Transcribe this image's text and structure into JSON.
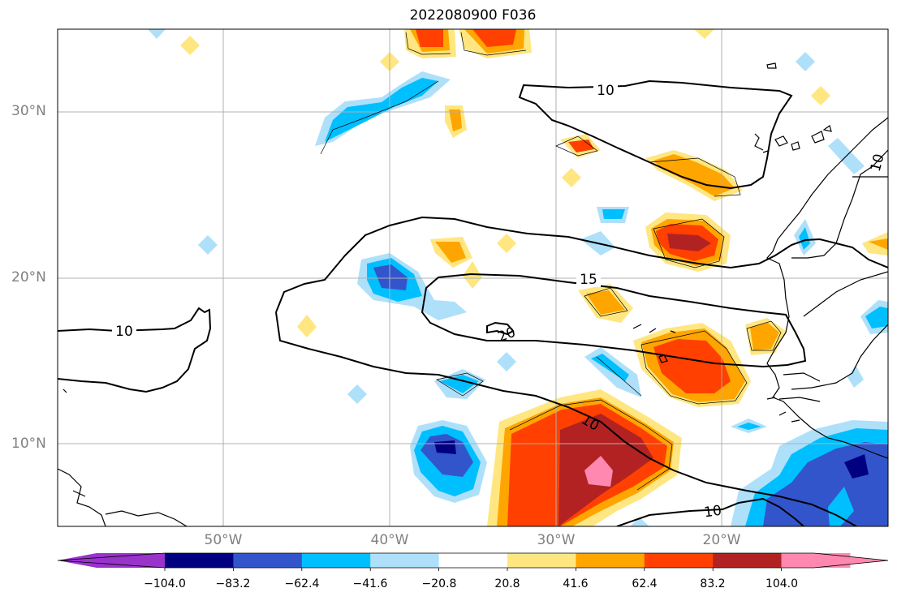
{
  "title": "2022080900 F036",
  "lat_labels": [
    "30°N",
    "20°N",
    "10°N"
  ],
  "lon_labels": [
    "50°W",
    "40°W",
    "30°W",
    "20°W"
  ],
  "contour_labels": [
    "10",
    "15",
    "20",
    "10",
    "10",
    "10"
  ],
  "colorbar": {
    "ticks": [
      "−104.0",
      "−83.2",
      "−62.4",
      "−41.6",
      "−20.8",
      "20.8",
      "41.6",
      "62.4",
      "83.2",
      "104.0"
    ],
    "colors": [
      "#9933cc",
      "#000080",
      "#3355cc",
      "#00bfff",
      "#aee0fa",
      "#ffffff",
      "#ffe680",
      "#ffa500",
      "#ff4000",
      "#b22222",
      "#ff88b0",
      "#ff88b0"
    ]
  },
  "colors": {
    "frame": "#000000",
    "grid": "#b0b0b0",
    "label_gray": "#808080"
  }
}
